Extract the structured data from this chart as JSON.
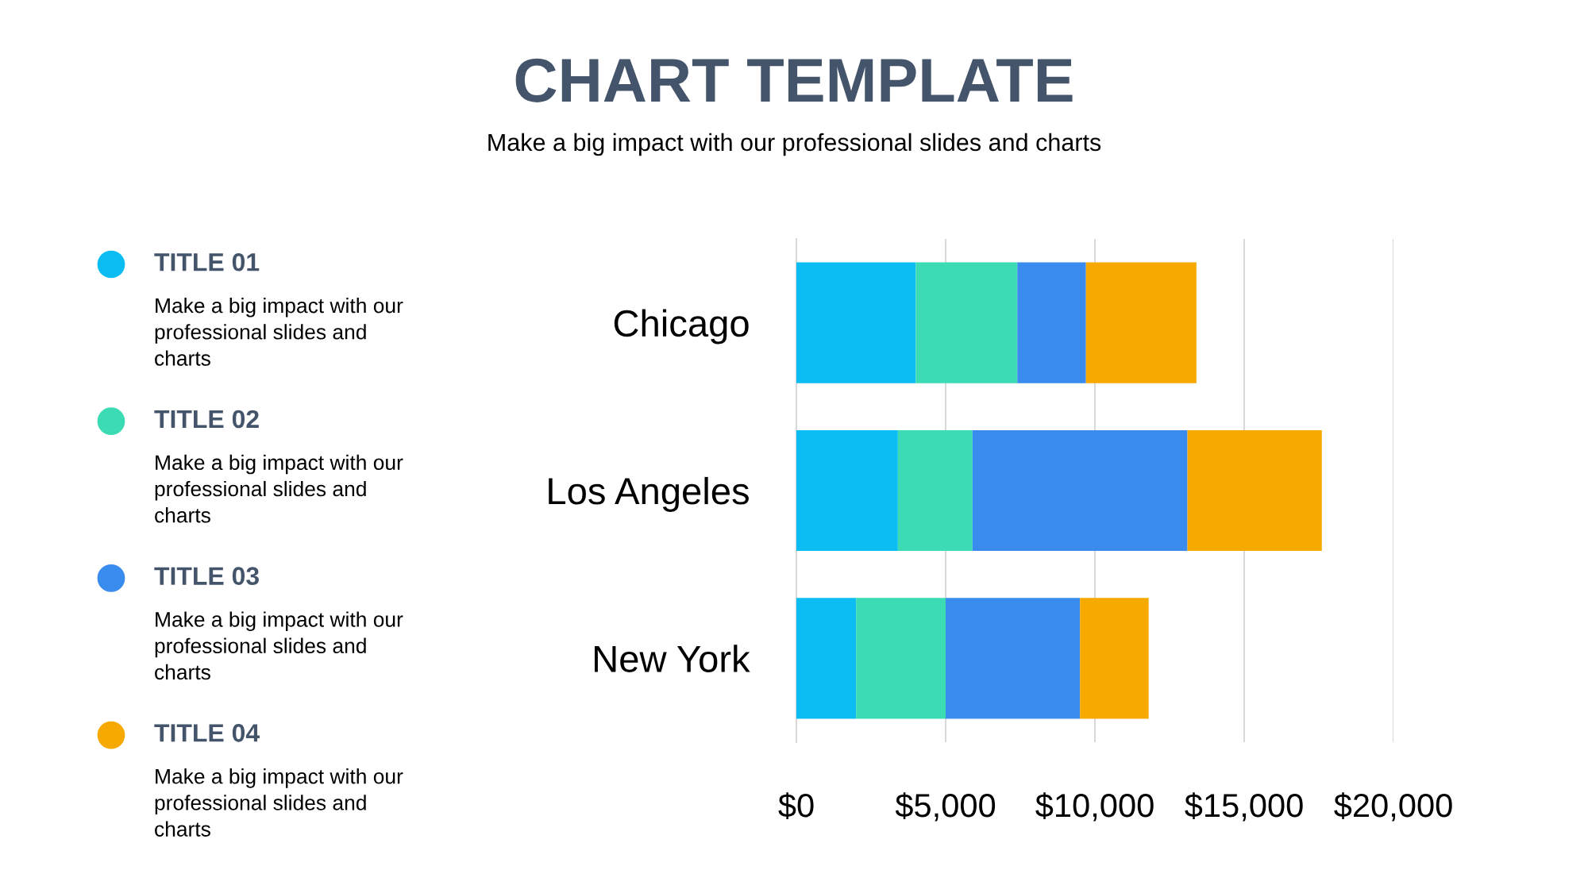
{
  "chart_data": {
    "type": "bar",
    "orientation": "horizontal",
    "stacked": true,
    "title": "CHART TEMPLATE",
    "subtitle": "Make a big impact with our professional slides and charts",
    "categories": [
      "Chicago",
      "Los Angeles",
      "New York"
    ],
    "series": [
      {
        "name": "TITLE 01",
        "color": "#0bbdf2",
        "values": [
          4000,
          3400,
          2000
        ]
      },
      {
        "name": "TITLE 02",
        "color": "#3bdbb4",
        "values": [
          3400,
          2500,
          3000
        ]
      },
      {
        "name": "TITLE 03",
        "color": "#3a8bee",
        "values": [
          2300,
          7200,
          4500
        ]
      },
      {
        "name": "TITLE 04",
        "color": "#f6a900",
        "values": [
          3700,
          4500,
          2300
        ]
      }
    ],
    "xlim": [
      0,
      20000
    ],
    "xticks": [
      {
        "value": 0,
        "label": "$0"
      },
      {
        "value": 5000,
        "label": "$5,000"
      },
      {
        "value": 10000,
        "label": "$10,000"
      },
      {
        "value": 15000,
        "label": "$15,000"
      },
      {
        "value": 20000,
        "label": "$20,000"
      }
    ],
    "grid": "x",
    "legend": "left",
    "annotations": [
      "Make a big impact with our professional slides and charts",
      "Make a big impact with our professional slides and charts",
      "Make a big impact with our professional slides and charts",
      "Make a big impact with our professional slides and charts"
    ]
  }
}
